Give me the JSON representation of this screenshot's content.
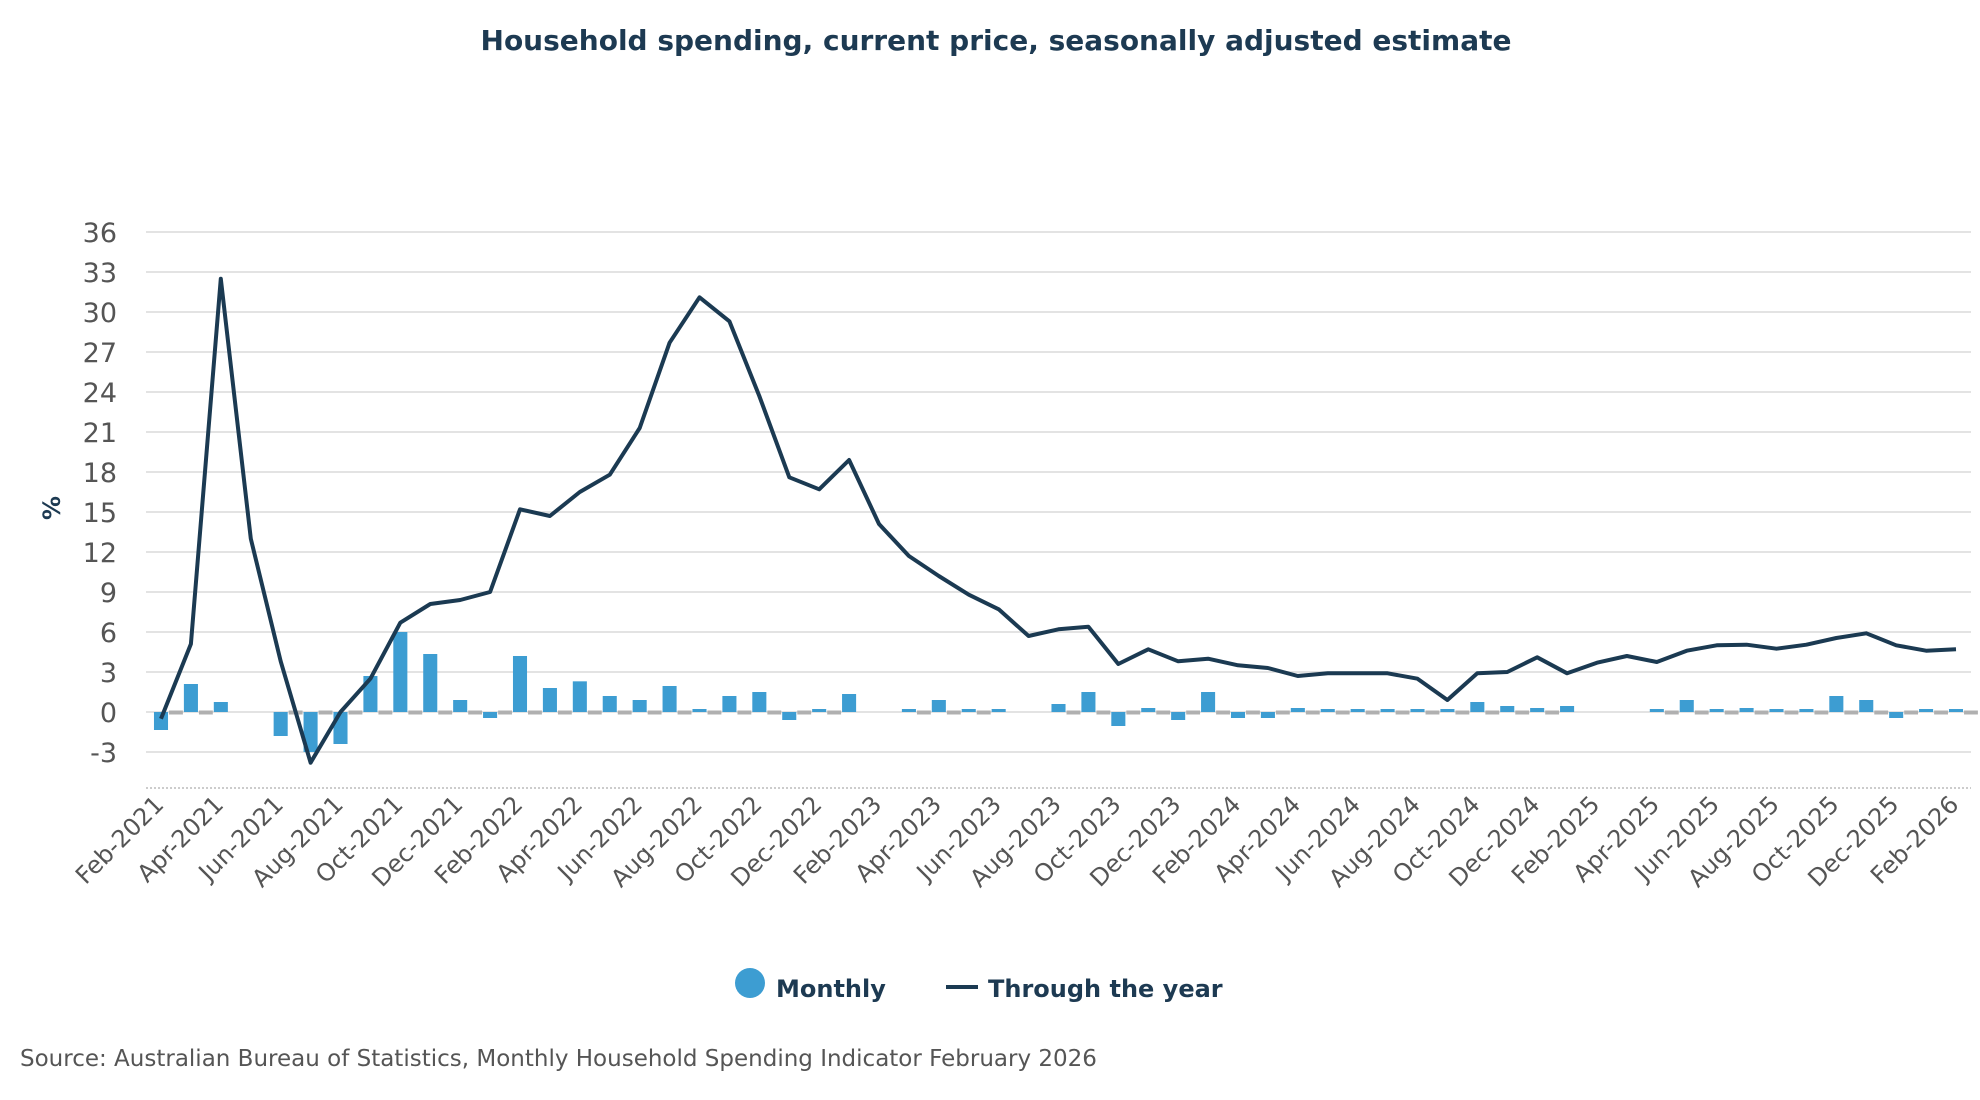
{
  "chart_data": {
    "type": "bar+line",
    "title": "Household spending, current price, seasonally adjusted estimate",
    "ylabel": "%",
    "xlabel": "",
    "ylim": [
      -6,
      36
    ],
    "yticks": [
      36,
      33,
      30,
      27,
      24,
      21,
      18,
      15,
      12,
      9,
      6,
      3,
      0,
      -3
    ],
    "grid": true,
    "legend_position": "bottom",
    "x": [
      "Feb-2021",
      "Mar-2021",
      "Apr-2021",
      "May-2021",
      "Jun-2021",
      "Jul-2021",
      "Aug-2021",
      "Sep-2021",
      "Oct-2021",
      "Nov-2021",
      "Dec-2021",
      "Jan-2022",
      "Feb-2022",
      "Mar-2022",
      "Apr-2022",
      "May-2022",
      "Jun-2022",
      "Jul-2022",
      "Aug-2022",
      "Sep-2022",
      "Oct-2022",
      "Nov-2022",
      "Dec-2022",
      "Jan-2023",
      "Feb-2023",
      "Mar-2023",
      "Apr-2023",
      "May-2023",
      "Jun-2023",
      "Jul-2023",
      "Aug-2023",
      "Sep-2023",
      "Oct-2023",
      "Nov-2023",
      "Dec-2023",
      "Jan-2024",
      "Feb-2024",
      "Mar-2024",
      "Apr-2024",
      "May-2024",
      "Jun-2024",
      "Jul-2024",
      "Aug-2024",
      "Sep-2024",
      "Oct-2024",
      "Nov-2024",
      "Dec-2024",
      "Jan-2025",
      "Feb-2025",
      "Mar-2025",
      "Apr-2025",
      "May-2025",
      "Jun-2025",
      "Jul-2025",
      "Aug-2025",
      "Sep-2025",
      "Oct-2025",
      "Nov-2025",
      "Dec-2025",
      "Jan-2026",
      "Feb-2026"
    ],
    "xtick_labels": [
      "Feb-2021",
      "Apr-2021",
      "Jun-2021",
      "Aug-2021",
      "Oct-2021",
      "Dec-2021",
      "Feb-2022",
      "Apr-2022",
      "Jun-2022",
      "Aug-2022",
      "Oct-2022",
      "Dec-2022",
      "Feb-2023",
      "Apr-2023",
      "Jun-2023",
      "Aug-2023",
      "Oct-2023",
      "Dec-2023",
      "Feb-2024",
      "Apr-2024",
      "Jun-2024",
      "Aug-2024",
      "Oct-2024",
      "Dec-2024",
      "Feb-2025",
      "Apr-2025",
      "Jun-2025",
      "Aug-2025",
      "Oct-2025",
      "Dec-2025",
      "Feb-2026"
    ],
    "series": [
      {
        "name": "Monthly",
        "type": "bar",
        "color": "#3d9dd2",
        "values": [
          -1.35,
          2.1,
          0.75,
          null,
          -1.8,
          -3.0,
          -2.4,
          2.7,
          6.0,
          4.35,
          0.9,
          -0.45,
          4.2,
          1.8,
          2.3,
          1.2,
          0.9,
          1.95,
          0.1,
          1.2,
          1.5,
          -0.6,
          0.1,
          1.35,
          null,
          0.0,
          0.9,
          0.0,
          0.0,
          null,
          0.6,
          1.5,
          -1.05,
          0.3,
          -0.6,
          1.5,
          -0.45,
          -0.45,
          0.3,
          0.15,
          0.0,
          0.15,
          0.15,
          0.0,
          0.75,
          0.45,
          0.3,
          0.45,
          null,
          null,
          0.0,
          0.9,
          0.15,
          0.3,
          0.0,
          0.1,
          1.2,
          0.9,
          -0.45,
          0.1,
          0.1
        ]
      },
      {
        "name": "Through the year",
        "type": "line",
        "color": "#1b3a52",
        "values": [
          -0.5,
          5.1,
          32.5,
          13.0,
          3.8,
          -3.8,
          0.0,
          2.5,
          6.7,
          8.1,
          8.4,
          9.0,
          15.2,
          14.7,
          16.5,
          17.8,
          21.3,
          27.7,
          31.1,
          29.3,
          23.7,
          17.6,
          16.7,
          18.9,
          14.1,
          11.7,
          10.2,
          8.8,
          7.7,
          5.7,
          6.2,
          6.4,
          3.6,
          4.7,
          3.8,
          4.0,
          3.5,
          3.3,
          2.7,
          2.9,
          2.9,
          2.9,
          2.5,
          0.9,
          2.9,
          3.0,
          4.1,
          2.9,
          3.7,
          4.2,
          3.75,
          4.6,
          5.0,
          5.05,
          4.75,
          5.05,
          5.55,
          5.9,
          5.0,
          4.6,
          4.7
        ]
      }
    ],
    "colors": {
      "grid": "#e3e3e3",
      "zero_marker": "#b0b0b0",
      "title": "#1d3a52"
    }
  },
  "source": "Source: Australian Bureau of Statistics, Monthly Household Spending Indicator February 2026"
}
